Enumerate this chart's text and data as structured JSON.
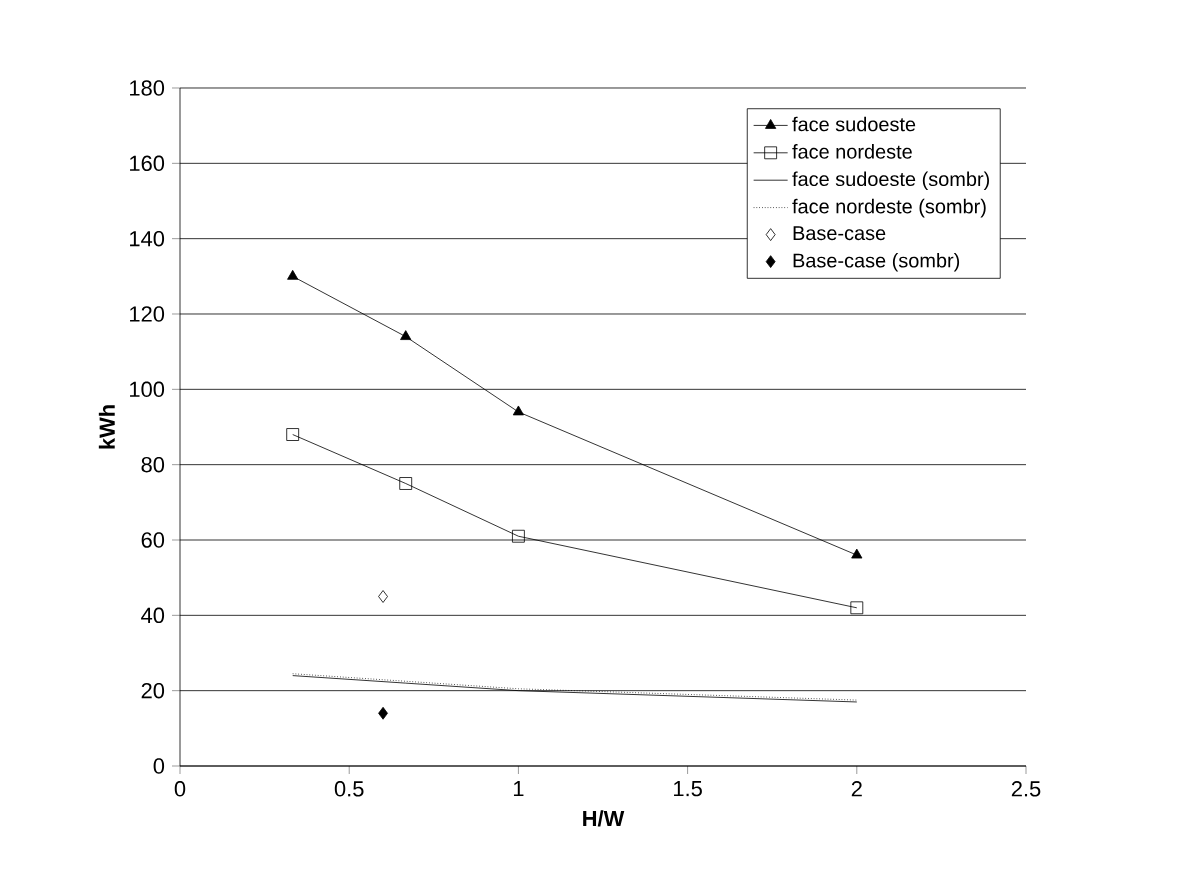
{
  "chart_data": {
    "type": "line",
    "xlabel": "H/W",
    "ylabel": "kWh",
    "xlim": [
      0,
      2.5
    ],
    "ylim": [
      0,
      180
    ],
    "xticks": [
      0,
      0.5,
      1,
      1.5,
      2,
      2.5
    ],
    "yticks": [
      0,
      20,
      40,
      60,
      80,
      100,
      120,
      140,
      160,
      180
    ],
    "grid": "y",
    "legend": "top right",
    "series": [
      {
        "name": "face sudoeste",
        "color": "#000000",
        "marker": "triangle",
        "line_style": "solid",
        "x": [
          0.333,
          0.667,
          1,
          2
        ],
        "values": [
          130,
          114,
          94,
          56
        ]
      },
      {
        "name": "face nordeste",
        "color": "#000000",
        "marker": "square",
        "line_style": "solid",
        "x": [
          0.333,
          0.667,
          1,
          2
        ],
        "values": [
          88,
          75,
          61,
          42
        ]
      },
      {
        "name": "face sudoeste (sombr)",
        "color": "#000000",
        "marker": "none",
        "line_style": "solid",
        "x": [
          0.333,
          0.667,
          1,
          2
        ],
        "values": [
          24,
          22,
          20,
          17
        ]
      },
      {
        "name": "face nordeste (sombr)",
        "color": "#000000",
        "marker": "none",
        "line_style": "dotted",
        "x": [
          0.333,
          0.667,
          1,
          2
        ],
        "values": [
          24.5,
          22.5,
          20.5,
          17.5
        ]
      },
      {
        "name": "Base-case",
        "type": "scatter",
        "color": "#000000",
        "marker": "diamond",
        "x": [
          0.6
        ],
        "values": [
          45
        ]
      },
      {
        "name": "Base-case (sombr)",
        "type": "scatter",
        "color": "#000000",
        "marker": "diamond*",
        "x": [
          0.6
        ],
        "values": [
          14
        ]
      }
    ]
  }
}
